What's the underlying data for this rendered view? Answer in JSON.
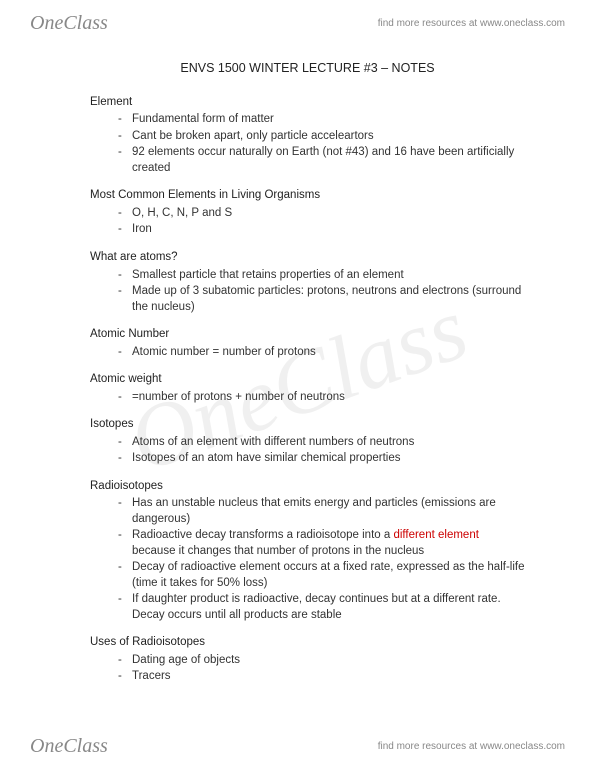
{
  "brand": {
    "part1": "One",
    "part2": "Class"
  },
  "tagline": "find more resources at www.oneclass.com",
  "title": "ENVS 1500 WINTER LECTURE #3 – NOTES",
  "sections": [
    {
      "heading": "Element",
      "items": [
        {
          "text": "Fundamental form of matter"
        },
        {
          "text": "Cant be broken apart, only particle acceleartors"
        },
        {
          "text": "92 elements occur naturally on Earth (not #43) and 16 have been artificially created"
        }
      ]
    },
    {
      "heading": "Most Common Elements in Living Organisms",
      "items": [
        {
          "text": "O, H, C, N, P and S"
        },
        {
          "text": "Iron"
        }
      ]
    },
    {
      "heading": "What are atoms?",
      "items": [
        {
          "text": "Smallest particle that retains properties of an element"
        },
        {
          "text": "Made up of 3 subatomic particles: protons, neutrons and electrons (surround the nucleus)"
        }
      ]
    },
    {
      "heading": "Atomic Number",
      "items": [
        {
          "text": "Atomic number = number of protons"
        }
      ]
    },
    {
      "heading": "Atomic weight",
      "items": [
        {
          "text": "=number of protons + number of neutrons"
        }
      ]
    },
    {
      "heading": "Isotopes",
      "items": [
        {
          "text": "Atoms of an element with different numbers of neutrons"
        },
        {
          "text": "Isotopes of an atom have similar chemical properties"
        }
      ]
    },
    {
      "heading": "Radioisotopes",
      "items": [
        {
          "text": "Has an unstable nucleus that emits energy and particles (emissions are dangerous)"
        },
        {
          "pre": "Radioactive decay transforms a radioisotope into a ",
          "red": "different element",
          "post": " because it changes that number of protons in the nucleus"
        },
        {
          "text": "Decay of radioactive element occurs at a fixed rate, expressed as the half-life (time it takes for 50% loss)"
        },
        {
          "text": "If daughter product is radioactive, decay continues but at a different rate. Decay occurs until all products are stable"
        }
      ]
    },
    {
      "heading": "Uses of Radioisotopes",
      "items": [
        {
          "text": "Dating age of objects"
        },
        {
          "text": "Tracers"
        }
      ]
    }
  ]
}
